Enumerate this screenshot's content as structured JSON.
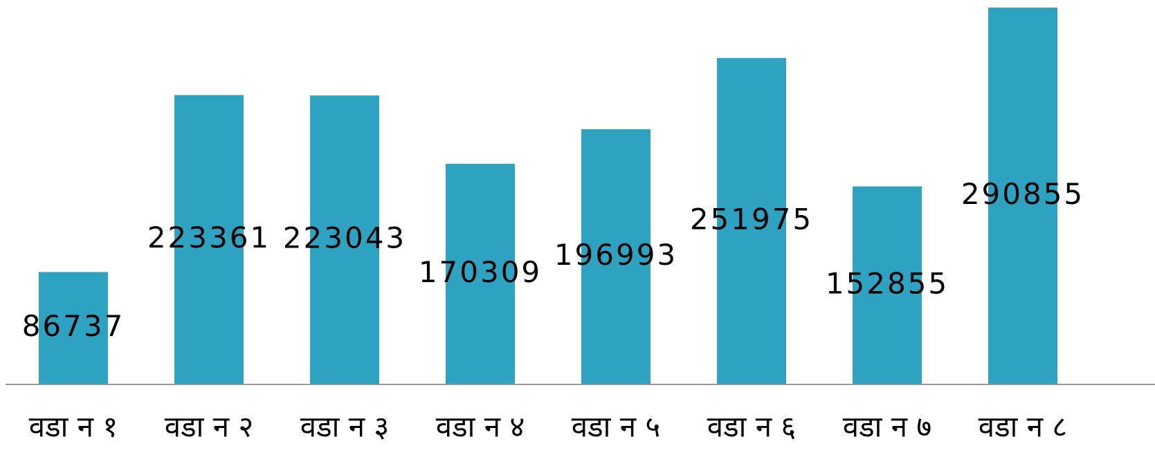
{
  "chart_data": {
    "type": "bar",
    "categories": [
      "वडा न १",
      "वडा न २",
      "वडा न ३",
      "वडा न ४",
      "वडा न ५",
      "वडा न ६",
      "वडा न ७",
      "वडा न ८"
    ],
    "values": [
      86737,
      223361,
      223043,
      170309,
      196993,
      251975,
      152855,
      290855
    ],
    "color": "#2ea2c1",
    "ylim": [
      0,
      300000
    ]
  }
}
